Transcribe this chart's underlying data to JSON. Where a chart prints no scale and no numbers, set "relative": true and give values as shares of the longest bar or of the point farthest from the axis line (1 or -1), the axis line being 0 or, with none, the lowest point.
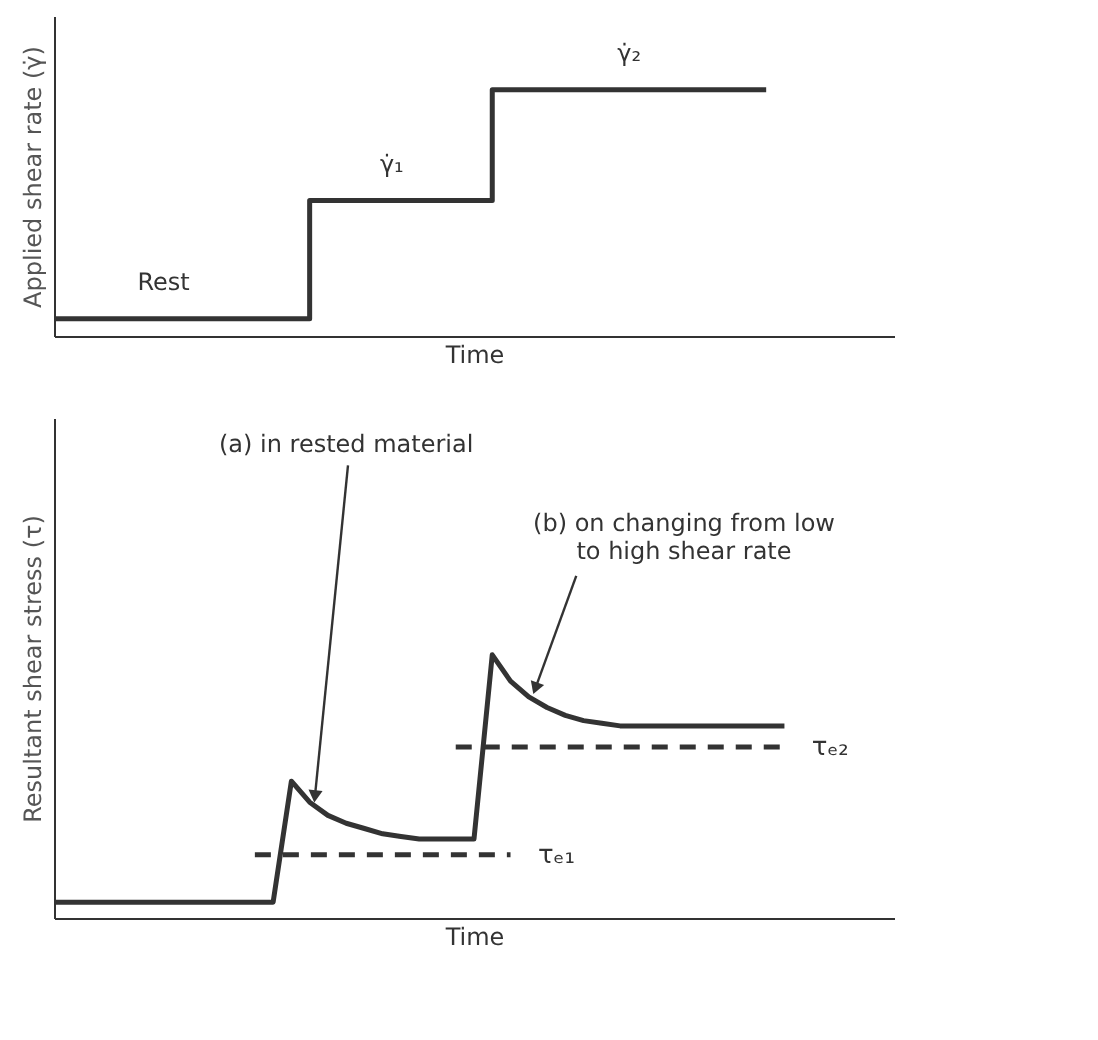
{
  "chart_data": [
    {
      "type": "step",
      "relative": true,
      "tick_labels": false,
      "xlabel": "Time",
      "ylabel": "Applied shear rate (γ̇)",
      "categories": [
        null,
        null,
        null,
        null,
        null,
        null,
        null,
        null,
        null,
        null,
        null,
        null,
        null,
        null,
        null,
        null,
        null,
        null,
        null,
        null,
        null,
        null,
        null,
        null,
        null,
        null,
        null,
        null,
        null,
        null,
        null,
        null,
        null,
        null,
        null,
        null,
        null,
        null,
        null,
        null,
        null
      ],
      "series": [
        {
          "color": "#333333",
          "values": [
            0.07,
            0.07,
            0.07,
            0.07,
            0.07,
            0.07,
            0.07,
            0.07,
            0.07,
            0.07,
            0.07,
            0.07,
            0.07,
            0.07,
            0.55,
            0.55,
            0.55,
            0.55,
            0.55,
            0.55,
            0.55,
            0.55,
            0.55,
            0.55,
            1,
            1,
            1,
            1,
            1,
            1,
            1,
            1,
            1,
            1,
            1,
            1,
            1,
            1,
            1,
            1,
            null
          ]
        }
      ],
      "annotations": [
        "Rest",
        "γ̇₁",
        "γ̇₂"
      ]
    },
    {
      "type": "line",
      "relative": true,
      "tick_labels": false,
      "xlabel": "Time",
      "ylabel": "Resultant shear stress (τ)",
      "categories": [
        null,
        null,
        null,
        null,
        null,
        null,
        null,
        null,
        null,
        null,
        null,
        null,
        null,
        null,
        null,
        null,
        null,
        null,
        null,
        null,
        null,
        null,
        null,
        null,
        null,
        null,
        null,
        null,
        null,
        null,
        null,
        null,
        null,
        null,
        null,
        null,
        null,
        null,
        null,
        null,
        null
      ],
      "series": [
        {
          "color": "#333333",
          "values": [
            0.06,
            0.06,
            0.06,
            0.06,
            0.06,
            0.06,
            0.06,
            0.06,
            0.06,
            0.06,
            0.06,
            0.06,
            0.06,
            0.52,
            0.44,
            0.39,
            0.36,
            0.34,
            0.32,
            0.31,
            0.3,
            0.3,
            0.3,
            0.3,
            1,
            0.9,
            0.84,
            0.8,
            0.77,
            0.75,
            0.74,
            0.73,
            0.73,
            0.73,
            0.73,
            0.73,
            0.73,
            0.73,
            0.73,
            0.73,
            0.73
          ]
        },
        {
          "name": "τₑ₁",
          "color": "#333333",
          "line_style": "dashed",
          "values": [
            null,
            null,
            null,
            null,
            null,
            null,
            null,
            null,
            null,
            null,
            null,
            0.24,
            0.24,
            0.24,
            0.24,
            0.24,
            0.24,
            0.24,
            0.24,
            0.24,
            0.24,
            0.24,
            0.24,
            0.24,
            0.24,
            0.24,
            null,
            null,
            null,
            null,
            null,
            null,
            null,
            null,
            null,
            null,
            null,
            null,
            null,
            null,
            null
          ]
        },
        {
          "name": "τₑ₂",
          "color": "#333333",
          "line_style": "dashed",
          "values": [
            null,
            null,
            null,
            null,
            null,
            null,
            null,
            null,
            null,
            null,
            null,
            null,
            null,
            null,
            null,
            null,
            null,
            null,
            null,
            null,
            null,
            null,
            0.65,
            0.65,
            0.65,
            0.65,
            0.65,
            0.65,
            0.65,
            0.65,
            0.65,
            0.65,
            0.65,
            0.65,
            0.65,
            0.65,
            0.65,
            0.65,
            0.65,
            0.65,
            0.65
          ]
        }
      ],
      "annotations": [
        "(a) in rested material",
        "(b) on changing from low\nto high shear rate"
      ]
    }
  ]
}
